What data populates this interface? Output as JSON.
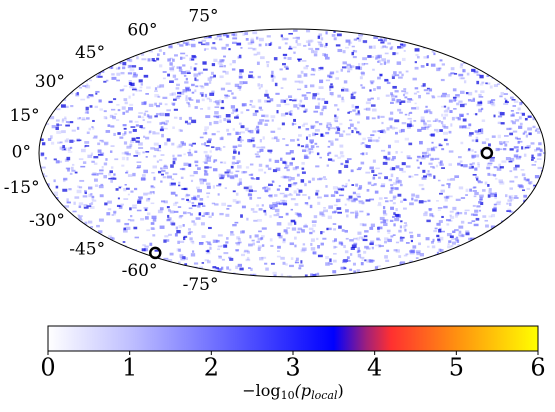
{
  "chart_data": {
    "type": "skymap",
    "projection": "hammer",
    "lat_ticks": [
      {
        "value": 75,
        "label": "75°"
      },
      {
        "value": 60,
        "label": "60°"
      },
      {
        "value": 45,
        "label": "45°"
      },
      {
        "value": 30,
        "label": "30°"
      },
      {
        "value": 15,
        "label": "15°"
      },
      {
        "value": 0,
        "label": "0°"
      },
      {
        "value": -15,
        "label": "-15°"
      },
      {
        "value": -30,
        "label": "-30°"
      },
      {
        "value": -45,
        "label": "-45°"
      },
      {
        "value": -60,
        "label": "-60°"
      },
      {
        "value": -75,
        "label": "-75°"
      }
    ],
    "hotspots": {
      "lon": [
        132,
        -168
      ],
      "lat": [
        0,
        -56
      ]
    },
    "clim": [
      0,
      6
    ],
    "cticks": [
      0,
      1,
      2,
      3,
      4,
      5,
      6
    ],
    "colormap": [
      [
        0,
        "#ffffff"
      ],
      [
        1,
        "#c0c0ff"
      ],
      [
        3.5,
        "#0000ff"
      ],
      [
        3.9,
        "#a0207a"
      ],
      [
        4.2,
        "#ff3030"
      ],
      [
        5,
        "#ff9010"
      ],
      [
        6,
        "#ffff00"
      ]
    ],
    "colorbar_label": [
      "−log",
      "10",
      "(p",
      "local",
      ")"
    ]
  }
}
